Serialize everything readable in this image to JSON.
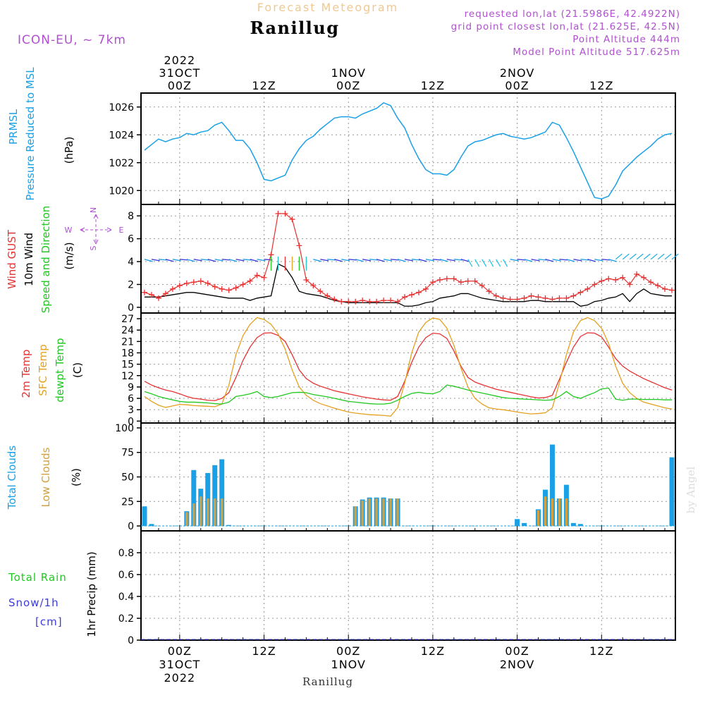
{
  "header": {
    "product": "Forecast Meteogram",
    "station": "Ranillug",
    "model": "ICON-EU, ~ 7km",
    "requested": "requested lon,lat (21.5986E, 42.4922N)",
    "grid_point": "grid point closest lon,lat (21.625E, 42.5N)",
    "point_altitude": "Point Altitude 444m",
    "model_altitude": "Model Point Altitude 517.625m",
    "footer_station": "Ranillug",
    "watermark": "by Angel"
  },
  "time_axis": {
    "top_labels": [
      {
        "lines": [
          "2022",
          "31OCT",
          "00Z"
        ],
        "hour": 0
      },
      {
        "lines": [
          "12Z"
        ],
        "hour": 12
      },
      {
        "lines": [
          "1NOV",
          "00Z"
        ],
        "hour": 24
      },
      {
        "lines": [
          "12Z"
        ],
        "hour": 36
      },
      {
        "lines": [
          "2NOV",
          "00Z"
        ],
        "hour": 48
      },
      {
        "lines": [
          "12Z"
        ],
        "hour": 60
      }
    ],
    "bottom_labels": [
      {
        "lines": [
          "00Z",
          "31OCT",
          "2022"
        ],
        "hour": 0
      },
      {
        "lines": [
          "12Z"
        ],
        "hour": 12
      },
      {
        "lines": [
          "00Z",
          "1NOV"
        ],
        "hour": 24
      },
      {
        "lines": [
          "12Z"
        ],
        "hour": 36
      },
      {
        "lines": [
          "00Z",
          "2NOV"
        ],
        "hour": 48
      },
      {
        "lines": [
          "12Z"
        ],
        "hour": 60
      }
    ],
    "range_hours": [
      -5.5,
      70.5
    ]
  },
  "panels": {
    "pressure": {
      "label1": "PRMSL",
      "label2": "Pressure Reduced to MSL",
      "unit": "(hPa)",
      "color": "#1aa0e6"
    },
    "wind": {
      "label_gust": "Wind GUST",
      "label_wind": "10m Wind",
      "label_dir": "Speed and Direction",
      "unit": "(m/s)",
      "compass_n": "N",
      "compass_s": "S",
      "compass_w": "W",
      "compass_e": "E",
      "gust_color": "#e63232",
      "wind_color": "#000000"
    },
    "temp": {
      "label1": "2m Temp",
      "label2": "SFC Temp",
      "label3": "dewpt Temp",
      "unit": "(C)",
      "t2m_color": "#e63232",
      "sfc_color": "#e6a020",
      "dew_color": "#20c820"
    },
    "clouds": {
      "label1": "Total Clouds",
      "label2": "Low Clouds",
      "unit": "(%)",
      "total_color": "#1aa0e6",
      "low_color": "#d2a040"
    },
    "precip": {
      "label_rain": "Total  Rain",
      "label_snow": "Snow/1h",
      "label_cm": "[cm]",
      "unit": "1hr Precip (mm)",
      "rain_color": "#20c820",
      "snow_color": "#3c3cdc"
    }
  },
  "chart_data": [
    {
      "type": "line",
      "name": "pressure",
      "ylabel": "(hPa)",
      "ylim": [
        1019,
        1027
      ],
      "yticks": [
        1020,
        1022,
        1024,
        1026
      ],
      "x": [
        -5,
        -4,
        -3,
        -2,
        -1,
        0,
        1,
        2,
        3,
        4,
        5,
        6,
        7,
        8,
        9,
        10,
        11,
        12,
        13,
        14,
        15,
        16,
        17,
        18,
        19,
        20,
        21,
        22,
        23,
        24,
        25,
        26,
        27,
        28,
        29,
        30,
        31,
        32,
        33,
        34,
        35,
        36,
        37,
        38,
        39,
        40,
        41,
        42,
        43,
        44,
        45,
        46,
        47,
        48,
        49,
        50,
        51,
        52,
        53,
        54,
        55,
        56,
        57,
        58,
        59,
        60,
        61,
        62,
        63,
        64,
        65,
        66,
        67,
        68,
        69,
        70
      ],
      "values": [
        1022.9,
        1023.3,
        1023.7,
        1023.5,
        1023.7,
        1023.8,
        1024.1,
        1024.0,
        1024.2,
        1024.3,
        1024.7,
        1024.9,
        1024.3,
        1023.6,
        1023.6,
        1023.0,
        1022.0,
        1020.8,
        1020.7,
        1020.9,
        1021.1,
        1022.2,
        1023.0,
        1023.6,
        1023.9,
        1024.4,
        1024.8,
        1025.2,
        1025.3,
        1025.3,
        1025.2,
        1025.5,
        1025.7,
        1025.9,
        1026.3,
        1026.1,
        1025.2,
        1024.5,
        1023.3,
        1022.3,
        1021.5,
        1021.2,
        1021.2,
        1021.1,
        1021.5,
        1022.4,
        1023.2,
        1023.5,
        1023.6,
        1023.8,
        1024.0,
        1024.1,
        1023.9,
        1023.8,
        1023.7,
        1023.8,
        1024.0,
        1024.2,
        1024.9,
        1024.7,
        1023.8,
        1022.8,
        1021.7,
        1020.6,
        1019.5,
        1019.4,
        1019.6,
        1020.4,
        1021.4,
        1021.9,
        1022.4,
        1022.8,
        1023.2,
        1023.7,
        1024.0,
        1024.1
      ]
    },
    {
      "type": "line",
      "name": "wind",
      "ylabel": "(m/s)",
      "ylim": [
        -0.5,
        9
      ],
      "yticks": [
        0,
        2,
        4,
        6,
        8
      ],
      "x": [
        -5,
        -4,
        -3,
        -2,
        -1,
        0,
        1,
        2,
        3,
        4,
        5,
        6,
        7,
        8,
        9,
        10,
        11,
        12,
        13,
        14,
        15,
        16,
        17,
        18,
        19,
        20,
        21,
        22,
        23,
        24,
        25,
        26,
        27,
        28,
        29,
        30,
        31,
        32,
        33,
        34,
        35,
        36,
        37,
        38,
        39,
        40,
        41,
        42,
        43,
        44,
        45,
        46,
        47,
        48,
        49,
        50,
        51,
        52,
        53,
        54,
        55,
        56,
        57,
        58,
        59,
        60,
        61,
        62,
        63,
        64,
        65,
        66,
        67,
        68,
        69,
        70
      ],
      "series": [
        {
          "name": "Wind GUST",
          "values": [
            1.3,
            1.1,
            0.8,
            1.2,
            1.6,
            1.9,
            2.1,
            2.2,
            2.3,
            2.1,
            1.8,
            1.6,
            1.5,
            1.7,
            2.0,
            2.3,
            2.8,
            2.6,
            4.6,
            8.2,
            8.2,
            7.7,
            5.4,
            2.4,
            1.9,
            1.4,
            1.0,
            0.7,
            0.5,
            0.5,
            0.5,
            0.6,
            0.5,
            0.5,
            0.6,
            0.6,
            0.5,
            0.9,
            1.1,
            1.3,
            1.6,
            2.2,
            2.4,
            2.5,
            2.5,
            2.2,
            2.3,
            2.3,
            1.9,
            1.4,
            1.0,
            0.8,
            0.7,
            0.7,
            0.8,
            1.0,
            0.9,
            0.8,
            0.7,
            0.8,
            0.8,
            1.0,
            1.3,
            1.6,
            2.0,
            2.3,
            2.5,
            2.4,
            2.6,
            2.0,
            2.9,
            2.6,
            2.2,
            1.9,
            1.6,
            1.5
          ]
        },
        {
          "name": "10m Wind",
          "values": [
            0.9,
            0.9,
            0.9,
            1.0,
            1.1,
            1.2,
            1.3,
            1.3,
            1.2,
            1.1,
            1.0,
            0.9,
            0.8,
            0.8,
            0.8,
            0.6,
            0.8,
            0.9,
            1.0,
            3.8,
            3.5,
            2.6,
            1.4,
            1.2,
            1.1,
            1.0,
            0.8,
            0.6,
            0.5,
            0.4,
            0.4,
            0.4,
            0.4,
            0.4,
            0.4,
            0.4,
            0.4,
            0.1,
            0.1,
            0.2,
            0.4,
            0.5,
            0.8,
            0.9,
            1.0,
            1.2,
            1.2,
            1.0,
            0.8,
            0.7,
            0.6,
            0.5,
            0.5,
            0.5,
            0.5,
            0.6,
            0.6,
            0.5,
            0.5,
            0.5,
            0.5,
            0.5,
            0.1,
            0.2,
            0.5,
            0.6,
            0.8,
            0.9,
            1.2,
            0.5,
            1.2,
            1.6,
            1.2,
            1.1,
            1.0,
            1.0
          ]
        }
      ]
    },
    {
      "type": "line",
      "name": "temperature",
      "ylabel": "(C)",
      "ylim": [
        -0.5,
        28.5
      ],
      "yticks": [
        0,
        3,
        6,
        9,
        12,
        15,
        18,
        21,
        24,
        27
      ],
      "x": [
        -5,
        -4,
        -3,
        -2,
        -1,
        0,
        1,
        2,
        3,
        4,
        5,
        6,
        7,
        8,
        9,
        10,
        11,
        12,
        13,
        14,
        15,
        16,
        17,
        18,
        19,
        20,
        21,
        22,
        23,
        24,
        25,
        26,
        27,
        28,
        29,
        30,
        31,
        32,
        33,
        34,
        35,
        36,
        37,
        38,
        39,
        40,
        41,
        42,
        43,
        44,
        45,
        46,
        47,
        48,
        49,
        50,
        51,
        52,
        53,
        54,
        55,
        56,
        57,
        58,
        59,
        60,
        61,
        62,
        63,
        64,
        65,
        66,
        67,
        68,
        69,
        70
      ],
      "series": [
        {
          "name": "2m Temp",
          "values": [
            10.5,
            9.5,
            8.8,
            8.2,
            7.8,
            7.2,
            6.5,
            6.0,
            5.8,
            5.5,
            5.4,
            6.0,
            7.5,
            11.5,
            16.0,
            19.5,
            22.0,
            23.2,
            23.3,
            22.6,
            21.0,
            17.5,
            13.5,
            11.2,
            10.0,
            9.2,
            8.6,
            8.0,
            7.6,
            7.2,
            6.8,
            6.4,
            6.1,
            5.8,
            5.6,
            5.5,
            6.5,
            10.5,
            15.5,
            19.5,
            22.0,
            23.2,
            23.0,
            21.8,
            18.5,
            14.5,
            11.5,
            10.3,
            9.6,
            9.0,
            8.4,
            8.0,
            7.6,
            7.2,
            6.8,
            6.4,
            6.1,
            6.2,
            6.8,
            11.0,
            15.5,
            19.5,
            22.3,
            23.3,
            23.2,
            22.2,
            19.5,
            16.5,
            14.5,
            13.2,
            12.2,
            11.2,
            10.4,
            9.6,
            8.8,
            8.2
          ]
        },
        {
          "name": "SFC Temp",
          "values": [
            6.5,
            5.2,
            4.2,
            3.6,
            4.0,
            4.4,
            4.3,
            4.1,
            4.0,
            3.9,
            3.8,
            4.5,
            9.5,
            17.5,
            22.5,
            25.5,
            27.3,
            26.8,
            25.5,
            23.0,
            19.0,
            13.5,
            9.0,
            6.8,
            5.5,
            4.6,
            4.0,
            3.4,
            2.9,
            2.4,
            2.1,
            1.9,
            1.7,
            1.6,
            1.5,
            1.3,
            3.5,
            10.0,
            18.0,
            23.5,
            26.0,
            27.2,
            26.8,
            24.5,
            20.0,
            14.0,
            9.0,
            6.0,
            4.5,
            3.5,
            3.2,
            3.0,
            2.7,
            2.4,
            2.1,
            1.9,
            2.0,
            2.2,
            3.5,
            10.0,
            17.5,
            23.5,
            26.5,
            27.3,
            26.5,
            24.5,
            20.5,
            14.5,
            10.0,
            7.5,
            6.0,
            5.0,
            4.5,
            4.0,
            3.5,
            3.2
          ]
        },
        {
          "name": "dewpt Temp",
          "values": [
            7.8,
            7.2,
            6.5,
            6.0,
            5.6,
            5.2,
            5.0,
            5.0,
            4.9,
            4.8,
            4.6,
            4.5,
            5.0,
            6.5,
            6.8,
            7.2,
            7.8,
            6.5,
            6.2,
            6.5,
            7.0,
            7.5,
            7.6,
            7.5,
            7.0,
            6.7,
            6.4,
            6.0,
            5.6,
            5.2,
            5.0,
            4.8,
            4.6,
            4.5,
            4.5,
            4.7,
            5.5,
            6.5,
            7.3,
            7.6,
            7.3,
            7.2,
            7.8,
            9.5,
            9.2,
            8.7,
            8.2,
            7.8,
            7.4,
            7.0,
            6.6,
            6.2,
            6.0,
            5.9,
            5.8,
            5.7,
            5.6,
            5.5,
            5.6,
            6.5,
            7.8,
            6.5,
            6.0,
            6.8,
            7.5,
            8.5,
            8.7,
            5.8,
            5.5,
            5.8,
            5.8,
            5.7,
            5.7,
            5.7,
            5.6,
            5.6
          ]
        }
      ]
    },
    {
      "type": "bar",
      "name": "clouds",
      "ylabel": "(%)",
      "ylim": [
        -5,
        105
      ],
      "yticks": [
        0,
        25,
        50,
        75,
        100
      ],
      "x": [
        -5,
        -4,
        -3,
        -2,
        -1,
        0,
        1,
        2,
        3,
        4,
        5,
        6,
        7,
        8,
        9,
        10,
        11,
        12,
        13,
        14,
        15,
        16,
        17,
        18,
        19,
        20,
        21,
        22,
        23,
        24,
        25,
        26,
        27,
        28,
        29,
        30,
        31,
        32,
        33,
        34,
        35,
        36,
        37,
        38,
        39,
        40,
        41,
        42,
        43,
        44,
        45,
        46,
        47,
        48,
        49,
        50,
        51,
        52,
        53,
        54,
        55,
        56,
        57,
        58,
        59,
        60,
        61,
        62,
        63,
        64,
        65,
        66,
        67,
        68,
        69,
        70
      ],
      "series": [
        {
          "name": "Total Clouds",
          "values": [
            20,
            2,
            0,
            0,
            0,
            0,
            15,
            57,
            38,
            54,
            62,
            68,
            1,
            0,
            0,
            0,
            0,
            0,
            0,
            0,
            0,
            0,
            0,
            0,
            0,
            0,
            0,
            0,
            0,
            0,
            20,
            27,
            29,
            29,
            29,
            28,
            28,
            0,
            0,
            0,
            0,
            0,
            0,
            0,
            0,
            0,
            0,
            0,
            0,
            0,
            0,
            0,
            0,
            7,
            3,
            0,
            17,
            37,
            83,
            28,
            42,
            3,
            2,
            0,
            0,
            0,
            0,
            0,
            0,
            0,
            0,
            0,
            0,
            0,
            0,
            70
          ]
        },
        {
          "name": "Low Clouds",
          "values": [
            0,
            0,
            0,
            0,
            0,
            0,
            14,
            23,
            30,
            28,
            28,
            28,
            0,
            0,
            0,
            0,
            0,
            0,
            0,
            0,
            0,
            0,
            0,
            0,
            0,
            0,
            0,
            0,
            0,
            0,
            20,
            26,
            28,
            28,
            28,
            28,
            28,
            0,
            0,
            0,
            0,
            0,
            0,
            0,
            0,
            0,
            0,
            0,
            0,
            0,
            0,
            0,
            0,
            0,
            0,
            0,
            16,
            30,
            28,
            28,
            28,
            0,
            0,
            0,
            0,
            0,
            0,
            0,
            0,
            0,
            0,
            0,
            0,
            0,
            0,
            0
          ]
        }
      ]
    },
    {
      "type": "bar",
      "name": "precipitation",
      "ylabel": "1hr Precip (mm)",
      "ylim": [
        0,
        1.0
      ],
      "yticks": [
        0,
        0.2,
        0.4,
        0.6,
        0.8
      ],
      "x": [
        -5,
        70
      ],
      "series": [
        {
          "name": "Total Rain",
          "values": [
            0,
            0
          ]
        },
        {
          "name": "Snow/1h",
          "values": [
            0,
            0
          ]
        }
      ]
    }
  ]
}
